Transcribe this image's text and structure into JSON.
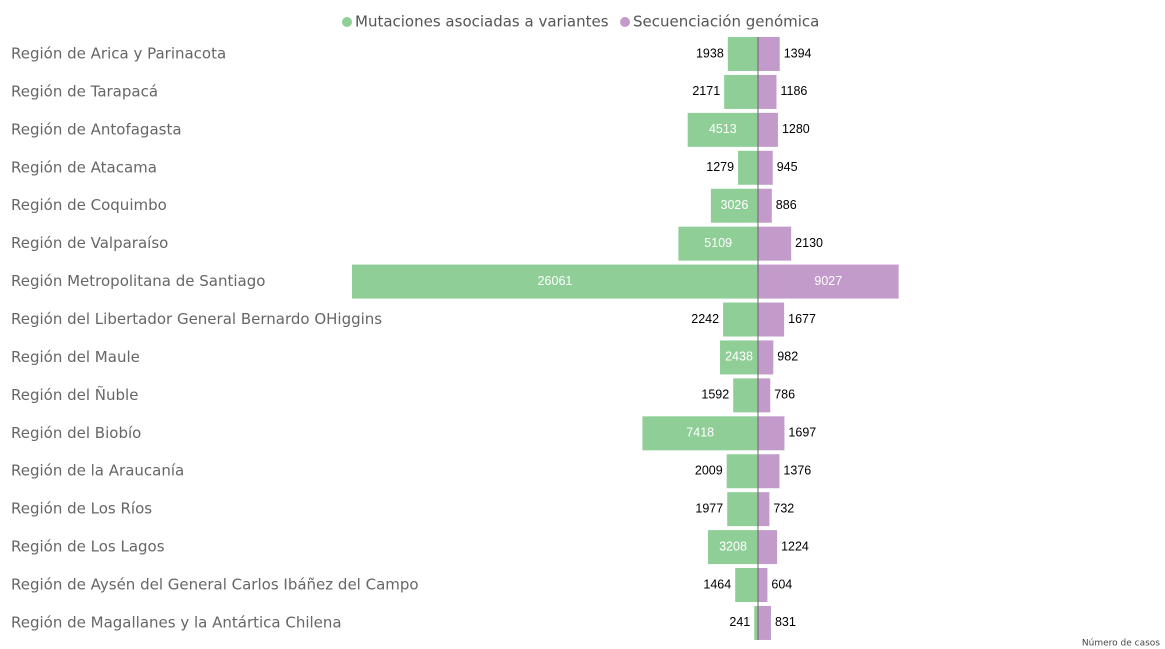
{
  "chart_data": {
    "type": "diverging-bar",
    "categories": [
      "Región de Arica y Parinacota",
      "Región de Tarapacá",
      "Región de Antofagasta",
      "Región de Atacama",
      "Región de Coquimbo",
      "Región de Valparaíso",
      "Región Metropolitana de Santiago",
      "Región del Libertador General Bernardo OHiggins",
      "Región del Maule",
      "Región del Ñuble",
      "Región del Biobío",
      "Región de la Araucanía",
      "Región de Los Ríos",
      "Región de Los Lagos",
      "Región de Aysén del General Carlos Ibáñez del Campo",
      "Región de Magallanes y la Antártica Chilena"
    ],
    "series": [
      {
        "name": "Mutaciones asociadas a variantes",
        "color": "#8fcf97",
        "values": [
          1938,
          2171,
          4513,
          1279,
          3026,
          5109,
          26061,
          2242,
          2438,
          1592,
          7418,
          2009,
          1977,
          3208,
          1464,
          241
        ]
      },
      {
        "name": "Secuenciación genómica",
        "color": "#c29bcb",
        "values": [
          1394,
          1186,
          1280,
          945,
          886,
          2130,
          9027,
          1677,
          982,
          786,
          1697,
          1376,
          732,
          1224,
          604,
          831
        ]
      }
    ],
    "x_label": "Número de casos"
  }
}
